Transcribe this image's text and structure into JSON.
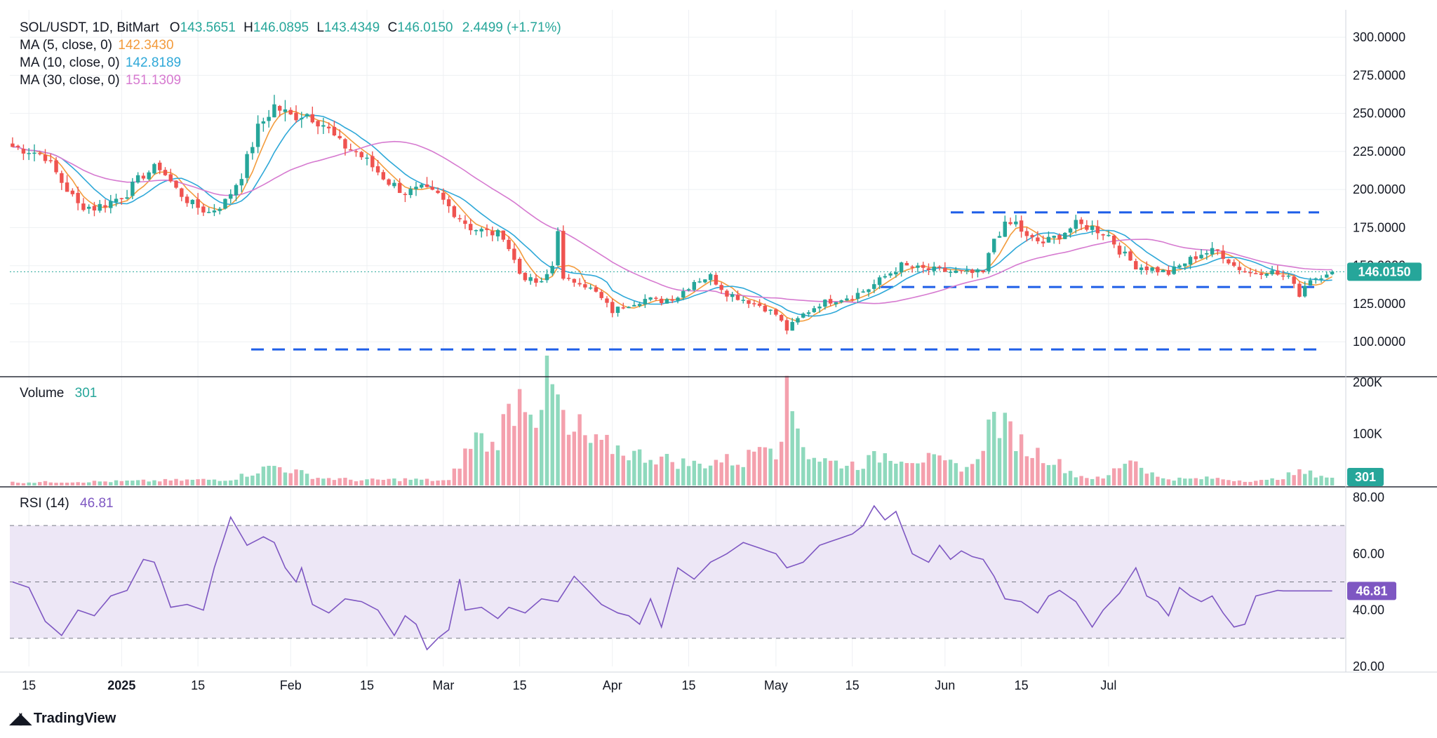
{
  "header": {
    "symbol": "SOL/USDT, 1D, BitMart",
    "o_label": "O",
    "o": "143.5651",
    "h_label": "H",
    "h": "146.0895",
    "l_label": "L",
    "l": "143.4349",
    "c_label": "C",
    "c": "146.0150",
    "change": "2.4499 (+1.71%)"
  },
  "indicators": [
    {
      "label": "MA (5, close, 0)",
      "value": "142.3430",
      "color": "#f39c3d"
    },
    {
      "label": "MA (10, close, 0)",
      "value": "142.8189",
      "color": "#2ea8d8"
    },
    {
      "label": "MA (30, close, 0)",
      "value": "151.1309",
      "color": "#d67ad0"
    }
  ],
  "volume": {
    "label": "Volume",
    "value": "301",
    "badge": "301"
  },
  "rsi": {
    "label": "RSI (14)",
    "value": "46.81",
    "badge": "46.81"
  },
  "price_badge": "146.0150",
  "branding": "TradingView",
  "colors": {
    "up": "#26a69a",
    "down": "#ef5350",
    "vol_up": "#8fd9bd",
    "vol_down": "#f4a0ad",
    "rsi_line": "#7e57c2",
    "rsi_band": "#ede7f6",
    "dash": "#1f5fe8",
    "grid": "#eef0f3"
  },
  "chart_data": [
    {
      "type": "candlestick",
      "title": "SOL/USDT, 1D, BitMart",
      "x_ticks": [
        "15",
        "2025",
        "15",
        "Feb",
        "15",
        "Mar",
        "15",
        "Apr",
        "15",
        "May",
        "15",
        "Jun",
        "15",
        "Jul"
      ],
      "y_ticks": [
        "300.0000",
        "275.0000",
        "250.0000",
        "225.0000",
        "200.0000",
        "175.0000",
        "150.0000",
        "125.0000",
        "100.0000"
      ],
      "ylim": [
        78,
        318
      ],
      "x_range": [
        "2024-12-13",
        "2025-07-02"
      ],
      "start_date": "2024-12-12",
      "last_price": 146.015,
      "series_keypoints_close": [
        [
          0,
          228
        ],
        [
          3,
          226
        ],
        [
          6,
          222
        ],
        [
          9,
          205
        ],
        [
          12,
          190
        ],
        [
          15,
          188
        ],
        [
          18,
          192
        ],
        [
          21,
          198
        ],
        [
          24,
          210
        ],
        [
          27,
          215
        ],
        [
          30,
          200
        ],
        [
          33,
          190
        ],
        [
          36,
          185
        ],
        [
          39,
          192
        ],
        [
          42,
          210
        ],
        [
          45,
          240
        ],
        [
          48,
          255
        ],
        [
          51,
          248
        ],
        [
          54,
          250
        ],
        [
          57,
          243
        ],
        [
          60,
          230
        ],
        [
          63,
          225
        ],
        [
          66,
          215
        ],
        [
          69,
          205
        ],
        [
          72,
          198
        ],
        [
          75,
          200
        ],
        [
          78,
          196
        ],
        [
          81,
          185
        ],
        [
          84,
          175
        ],
        [
          87,
          172
        ],
        [
          90,
          170
        ],
        [
          93,
          145
        ],
        [
          95,
          140
        ],
        [
          97,
          138
        ],
        [
          99,
          150
        ],
        [
          100,
          175
        ],
        [
          101,
          140
        ],
        [
          104,
          140
        ],
        [
          107,
          132
        ],
        [
          110,
          120
        ],
        [
          113,
          125
        ],
        [
          116,
          128
        ],
        [
          119,
          127
        ],
        [
          122,
          130
        ],
        [
          125,
          140
        ],
        [
          128,
          143
        ],
        [
          131,
          132
        ],
        [
          134,
          128
        ],
        [
          137,
          124
        ],
        [
          140,
          118
        ],
        [
          142,
          108
        ],
        [
          145,
          118
        ],
        [
          148,
          125
        ],
        [
          151,
          128
        ],
        [
          154,
          130
        ],
        [
          157,
          135
        ],
        [
          160,
          143
        ],
        [
          163,
          150
        ],
        [
          166,
          148
        ],
        [
          169,
          147
        ],
        [
          172,
          146
        ],
        [
          175,
          145
        ],
        [
          178,
          145
        ],
        [
          180,
          168
        ],
        [
          182,
          176
        ],
        [
          184,
          178
        ],
        [
          186,
          168
        ],
        [
          189,
          165
        ],
        [
          192,
          170
        ],
        [
          195,
          177
        ],
        [
          198,
          175
        ],
        [
          201,
          170
        ],
        [
          203,
          160
        ],
        [
          206,
          150
        ],
        [
          209,
          148
        ],
        [
          212,
          145
        ],
        [
          215,
          152
        ],
        [
          218,
          158
        ],
        [
          221,
          160
        ],
        [
          224,
          150
        ],
        [
          227,
          145
        ],
        [
          230,
          147
        ],
        [
          233,
          143
        ],
        [
          235,
          140
        ],
        [
          236,
          130
        ],
        [
          237,
          138
        ],
        [
          239,
          144
        ],
        [
          241,
          143
        ],
        [
          242,
          146
        ]
      ],
      "dashed_levels": [
        185,
        136,
        95
      ],
      "series": [
        {
          "name": "MA (5, close, 0)",
          "last": 142.343
        },
        {
          "name": "MA (10, close, 0)",
          "last": 142.8189
        },
        {
          "name": "MA (30, close, 0)",
          "last": 151.1309
        }
      ]
    },
    {
      "type": "bar",
      "title": "Volume",
      "y_ticks": [
        "200K",
        "100K"
      ],
      "ylim": [
        0,
        200000
      ],
      "last": 301,
      "values_keypoints": [
        [
          0,
          6000
        ],
        [
          20,
          8000
        ],
        [
          40,
          12000
        ],
        [
          48,
          38000
        ],
        [
          56,
          15000
        ],
        [
          64,
          10000
        ],
        [
          72,
          12000
        ],
        [
          80,
          9000
        ],
        [
          85,
          95000
        ],
        [
          88,
          75000
        ],
        [
          92,
          160000
        ],
        [
          94,
          185000
        ],
        [
          96,
          145000
        ],
        [
          98,
          195000
        ],
        [
          100,
          165000
        ],
        [
          102,
          90000
        ],
        [
          104,
          110000
        ],
        [
          106,
          80000
        ],
        [
          110,
          75000
        ],
        [
          114,
          60000
        ],
        [
          118,
          55000
        ],
        [
          122,
          45000
        ],
        [
          126,
          40000
        ],
        [
          130,
          50000
        ],
        [
          134,
          45000
        ],
        [
          137,
          80000
        ],
        [
          138,
          105000
        ],
        [
          140,
          70000
        ],
        [
          142,
          165000
        ],
        [
          144,
          120000
        ],
        [
          146,
          60000
        ],
        [
          150,
          45000
        ],
        [
          155,
          40000
        ],
        [
          160,
          60000
        ],
        [
          164,
          55000
        ],
        [
          168,
          50000
        ],
        [
          172,
          40000
        ],
        [
          176,
          35000
        ],
        [
          178,
          90000
        ],
        [
          180,
          130000
        ],
        [
          182,
          110000
        ],
        [
          184,
          95000
        ],
        [
          186,
          70000
        ],
        [
          190,
          55000
        ],
        [
          195,
          20000
        ],
        [
          200,
          12000
        ],
        [
          205,
          55000
        ],
        [
          210,
          15000
        ],
        [
          215,
          12000
        ],
        [
          220,
          14000
        ],
        [
          225,
          10000
        ],
        [
          230,
          9000
        ],
        [
          236,
          25000
        ],
        [
          239,
          22000
        ],
        [
          242,
          15000
        ]
      ]
    },
    {
      "type": "line",
      "title": "RSI (14)",
      "y_ticks": [
        "80.00",
        "60.00",
        "40.00",
        "20.00"
      ],
      "ylim": [
        20,
        81
      ],
      "band": [
        30,
        70
      ],
      "middle": 50,
      "last": 46.81,
      "values_keypoints": [
        [
          0,
          50
        ],
        [
          3,
          48
        ],
        [
          6,
          36
        ],
        [
          9,
          31
        ],
        [
          12,
          40
        ],
        [
          15,
          38
        ],
        [
          18,
          45
        ],
        [
          21,
          47
        ],
        [
          24,
          58
        ],
        [
          26,
          57
        ],
        [
          27,
          52
        ],
        [
          29,
          41
        ],
        [
          32,
          42
        ],
        [
          35,
          40
        ],
        [
          37,
          55
        ],
        [
          40,
          73
        ],
        [
          43,
          63
        ],
        [
          46,
          66
        ],
        [
          48,
          64
        ],
        [
          50,
          55
        ],
        [
          52,
          50
        ],
        [
          53,
          55
        ],
        [
          55,
          42
        ],
        [
          58,
          39
        ],
        [
          61,
          44
        ],
        [
          64,
          43
        ],
        [
          67,
          40
        ],
        [
          70,
          31
        ],
        [
          72,
          38
        ],
        [
          74,
          35
        ],
        [
          76,
          26
        ],
        [
          78,
          30
        ],
        [
          80,
          33
        ],
        [
          82,
          51
        ],
        [
          83,
          40
        ],
        [
          86,
          41
        ],
        [
          89,
          37
        ],
        [
          91,
          41
        ],
        [
          94,
          39
        ],
        [
          97,
          44
        ],
        [
          100,
          43
        ],
        [
          103,
          52
        ],
        [
          105,
          48
        ],
        [
          108,
          42
        ],
        [
          111,
          39
        ],
        [
          113,
          38
        ],
        [
          115,
          35
        ],
        [
          117,
          44
        ],
        [
          119,
          34
        ],
        [
          122,
          55
        ],
        [
          125,
          51
        ],
        [
          128,
          57
        ],
        [
          131,
          60
        ],
        [
          134,
          64
        ],
        [
          137,
          62
        ],
        [
          140,
          60
        ],
        [
          142,
          55
        ],
        [
          145,
          57
        ],
        [
          148,
          63
        ],
        [
          151,
          65
        ],
        [
          154,
          67
        ],
        [
          156,
          70
        ],
        [
          158,
          77
        ],
        [
          160,
          72
        ],
        [
          162,
          75
        ],
        [
          163,
          70
        ],
        [
          165,
          60
        ],
        [
          168,
          57
        ],
        [
          170,
          63
        ],
        [
          172,
          58
        ],
        [
          174,
          61
        ],
        [
          176,
          59
        ],
        [
          178,
          58
        ],
        [
          180,
          52
        ],
        [
          182,
          44
        ],
        [
          185,
          43
        ],
        [
          188,
          39
        ],
        [
          190,
          45
        ],
        [
          192,
          47
        ],
        [
          195,
          43
        ],
        [
          198,
          34
        ],
        [
          200,
          40
        ],
        [
          203,
          46
        ],
        [
          206,
          55
        ],
        [
          208,
          45
        ],
        [
          210,
          43
        ],
        [
          212,
          38
        ],
        [
          214,
          48
        ],
        [
          216,
          45
        ],
        [
          218,
          43
        ],
        [
          220,
          45
        ],
        [
          222,
          39
        ],
        [
          224,
          34
        ],
        [
          226,
          35
        ],
        [
          228,
          45
        ],
        [
          230,
          46
        ],
        [
          232,
          47
        ],
        [
          233,
          46.81
        ]
      ]
    }
  ]
}
